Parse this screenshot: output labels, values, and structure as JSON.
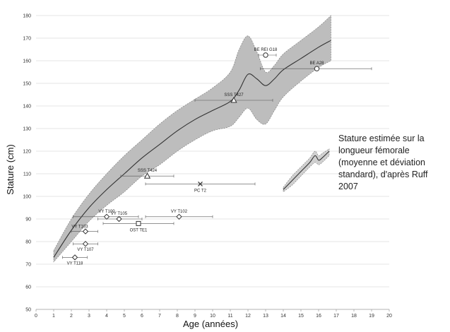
{
  "chart_data": {
    "type": "scatter",
    "xlabel": "Age (années)",
    "ylabel": "Stature (cm)",
    "xlim": [
      0,
      20
    ],
    "ylim": [
      50,
      180
    ],
    "xticks": [
      0,
      1,
      2,
      3,
      4,
      5,
      6,
      7,
      8,
      9,
      10,
      11,
      12,
      13,
      14,
      15,
      16,
      17,
      18,
      19,
      20
    ],
    "yticks": [
      50,
      60,
      70,
      80,
      90,
      100,
      110,
      120,
      130,
      140,
      150,
      160,
      170,
      180
    ],
    "grid": "horizontal",
    "annotation": "Stature estimée sur la longueur fémorale (moyenne et déviation standard), d'après Ruff 2007",
    "reference_band": {
      "x": [
        1.0,
        2.0,
        3.0,
        4.0,
        5.0,
        6.0,
        7.0,
        8.0,
        9.0,
        10.0,
        11.0,
        11.5,
        12.0,
        12.5,
        13.0,
        13.5,
        14.0,
        15.0,
        16.0,
        16.7
      ],
      "mean": [
        73,
        85,
        95,
        103,
        110,
        117,
        123,
        129,
        134,
        138,
        142,
        147,
        154,
        152,
        149,
        152,
        156,
        161,
        166,
        169
      ],
      "upper": [
        76,
        90,
        101,
        110,
        118,
        125,
        132,
        138,
        143,
        148,
        155,
        165,
        171,
        164,
        155,
        158,
        163,
        169,
        175,
        180
      ],
      "lower": [
        71,
        80,
        89,
        96,
        102,
        109,
        114,
        120,
        125,
        129,
        131,
        135,
        139,
        134,
        132,
        138,
        144,
        151,
        157,
        160
      ]
    },
    "fragment_curve": {
      "x": [
        14.0,
        14.5,
        15.0,
        15.5,
        15.8,
        16.0,
        16.2,
        16.6
      ],
      "mean": [
        103,
        107,
        111,
        115,
        118,
        116,
        117,
        120
      ],
      "upper": [
        104,
        109,
        113,
        117,
        120,
        118,
        119,
        121
      ],
      "lower": [
        102,
        105,
        109,
        113,
        115,
        114,
        115,
        118
      ]
    },
    "points": [
      {
        "label": "BE REI G18",
        "x": 13.0,
        "y": 162.5,
        "xerr": [
          12.6,
          13.6
        ],
        "marker": "circle"
      },
      {
        "label": "BE A28",
        "x": 15.9,
        "y": 156.5,
        "xerr": [
          12.7,
          19.0
        ],
        "marker": "circle"
      },
      {
        "label": "SSS T427",
        "x": 11.2,
        "y": 142.5,
        "xerr": [
          9.0,
          13.4
        ],
        "marker": "triangle"
      },
      {
        "label": "SSS T424",
        "x": 6.3,
        "y": 109.0,
        "xerr": [
          4.8,
          7.8
        ],
        "marker": "triangle"
      },
      {
        "label": "PC T2",
        "x": 9.3,
        "y": 105.5,
        "xerr": [
          6.2,
          12.4
        ],
        "marker": "cross"
      },
      {
        "label": "VY T100",
        "x": 4.0,
        "y": 91.0,
        "xerr": [
          2.1,
          5.8
        ],
        "marker": "diamond"
      },
      {
        "label": "VY T105",
        "x": 4.7,
        "y": 90.0,
        "xerr": [
          3.5,
          6.0
        ],
        "marker": "diamond"
      },
      {
        "label": "VY T102",
        "x": 8.1,
        "y": 91.0,
        "xerr": [
          6.2,
          10.0
        ],
        "marker": "diamond"
      },
      {
        "label": "OST TE1",
        "x": 5.8,
        "y": 88.0,
        "xerr": [
          3.8,
          7.8
        ],
        "marker": "square"
      },
      {
        "label": "VY T103",
        "x": 2.8,
        "y": 84.5,
        "xerr": [
          2.0,
          3.5
        ],
        "marker": "diamond"
      },
      {
        "label": "VY T107",
        "x": 2.8,
        "y": 79.0,
        "xerr": [
          2.1,
          3.5
        ],
        "marker": "diamond"
      },
      {
        "label": "VY T118",
        "x": 2.2,
        "y": 73.0,
        "xerr": [
          1.5,
          2.9
        ],
        "marker": "diamond"
      }
    ]
  }
}
